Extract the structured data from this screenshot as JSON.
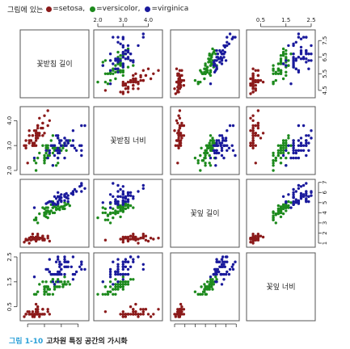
{
  "legend": {
    "prefix": "그림에 있는",
    "items": [
      {
        "label": "=setosa,",
        "color": "#8b1a1a"
      },
      {
        "label": "=versicolor,",
        "color": "#1d8a1d"
      },
      {
        "label": "=virginica",
        "color": "#1a1a9c"
      }
    ]
  },
  "caption": {
    "number": "그림 1-10",
    "text": "고차원 특징 공간의 가시화"
  },
  "chart_data": {
    "type": "scatter",
    "subtype": "scatterplot-matrix",
    "variables": [
      {
        "name": "꽃받침 길이",
        "range": [
          4.3,
          7.9
        ],
        "ticks": [
          4.5,
          5.5,
          6.5,
          7.5
        ],
        "tick_labels": [
          "4.5",
          "5.5",
          "6.5",
          "7.5"
        ]
      },
      {
        "name": "꽃받침 너비",
        "range": [
          2.0,
          4.4
        ],
        "ticks": [
          2.0,
          3.0,
          4.0
        ],
        "tick_labels": [
          "2.0",
          "3.0",
          "4.0"
        ]
      },
      {
        "name": "꽃잎 길이",
        "range": [
          1.0,
          6.9
        ],
        "ticks": [
          1,
          2,
          3,
          4,
          5,
          6,
          7
        ],
        "tick_labels": [
          "1",
          "2",
          "3",
          "4",
          "5",
          "6",
          "7"
        ]
      },
      {
        "name": "꽃잎 너비",
        "range": [
          0.1,
          2.5
        ],
        "ticks": [
          0.5,
          1.5,
          2.5
        ],
        "tick_labels": [
          "0.5",
          "1.5",
          "2.5"
        ]
      }
    ],
    "axes": {
      "top": [
        {
          "panel": 1,
          "variable": 1
        },
        {
          "panel": 3,
          "variable": 3
        }
      ],
      "right": [
        {
          "panel": 0,
          "variable": 0
        },
        {
          "panel": 2,
          "variable": 2
        }
      ],
      "left": [
        {
          "panel": 1,
          "variable": 1
        },
        {
          "panel": 3,
          "variable": 3
        }
      ],
      "bottom": [
        {
          "panel": 0,
          "variable": 0
        },
        {
          "panel": 2,
          "variable": 2
        }
      ]
    },
    "grid": false,
    "legend_position": "top-left",
    "series": [
      {
        "name": "setosa",
        "color": "#8b1a1a",
        "points": [
          [
            5.1,
            3.5,
            1.4,
            0.2
          ],
          [
            4.9,
            3.0,
            1.4,
            0.2
          ],
          [
            4.7,
            3.2,
            1.3,
            0.2
          ],
          [
            4.6,
            3.1,
            1.5,
            0.2
          ],
          [
            5.0,
            3.6,
            1.4,
            0.2
          ],
          [
            5.4,
            3.9,
            1.7,
            0.4
          ],
          [
            4.6,
            3.4,
            1.4,
            0.3
          ],
          [
            5.0,
            3.4,
            1.5,
            0.2
          ],
          [
            4.4,
            2.9,
            1.4,
            0.2
          ],
          [
            4.9,
            3.1,
            1.5,
            0.1
          ],
          [
            5.4,
            3.7,
            1.5,
            0.2
          ],
          [
            4.8,
            3.4,
            1.6,
            0.2
          ],
          [
            4.8,
            3.0,
            1.4,
            0.1
          ],
          [
            4.3,
            3.0,
            1.1,
            0.1
          ],
          [
            5.8,
            4.0,
            1.2,
            0.2
          ],
          [
            5.7,
            4.4,
            1.5,
            0.4
          ],
          [
            5.4,
            3.9,
            1.3,
            0.4
          ],
          [
            5.1,
            3.5,
            1.4,
            0.3
          ],
          [
            5.7,
            3.8,
            1.7,
            0.3
          ],
          [
            5.1,
            3.8,
            1.5,
            0.3
          ],
          [
            5.4,
            3.4,
            1.7,
            0.2
          ],
          [
            5.1,
            3.7,
            1.5,
            0.4
          ],
          [
            4.6,
            3.6,
            1.0,
            0.2
          ],
          [
            5.1,
            3.3,
            1.7,
            0.5
          ],
          [
            4.8,
            3.4,
            1.9,
            0.2
          ],
          [
            5.0,
            3.0,
            1.6,
            0.2
          ],
          [
            5.0,
            3.4,
            1.6,
            0.4
          ],
          [
            5.2,
            3.5,
            1.5,
            0.2
          ],
          [
            5.2,
            3.4,
            1.4,
            0.2
          ],
          [
            4.7,
            3.2,
            1.6,
            0.2
          ],
          [
            4.8,
            3.1,
            1.6,
            0.2
          ],
          [
            5.4,
            3.4,
            1.5,
            0.4
          ],
          [
            5.2,
            4.1,
            1.5,
            0.1
          ],
          [
            5.5,
            4.2,
            1.4,
            0.2
          ],
          [
            4.9,
            3.1,
            1.5,
            0.2
          ],
          [
            5.0,
            3.2,
            1.2,
            0.2
          ],
          [
            5.5,
            3.5,
            1.3,
            0.2
          ],
          [
            4.9,
            3.6,
            1.4,
            0.1
          ],
          [
            4.4,
            3.0,
            1.3,
            0.2
          ],
          [
            5.1,
            3.4,
            1.5,
            0.2
          ],
          [
            5.0,
            3.5,
            1.3,
            0.3
          ],
          [
            4.5,
            2.3,
            1.3,
            0.3
          ],
          [
            4.4,
            3.2,
            1.3,
            0.2
          ],
          [
            5.0,
            3.5,
            1.6,
            0.6
          ],
          [
            5.1,
            3.8,
            1.9,
            0.4
          ],
          [
            4.8,
            3.0,
            1.4,
            0.3
          ],
          [
            5.1,
            3.8,
            1.6,
            0.2
          ],
          [
            4.6,
            3.2,
            1.4,
            0.2
          ],
          [
            5.3,
            3.7,
            1.5,
            0.2
          ],
          [
            5.0,
            3.3,
            1.4,
            0.2
          ]
        ]
      },
      {
        "name": "versicolor",
        "color": "#1d8a1d",
        "points": [
          [
            7.0,
            3.2,
            4.7,
            1.4
          ],
          [
            6.4,
            3.2,
            4.5,
            1.5
          ],
          [
            6.9,
            3.1,
            4.9,
            1.5
          ],
          [
            5.5,
            2.3,
            4.0,
            1.3
          ],
          [
            6.5,
            2.8,
            4.6,
            1.5
          ],
          [
            5.7,
            2.8,
            4.5,
            1.3
          ],
          [
            6.3,
            3.3,
            4.7,
            1.6
          ],
          [
            4.9,
            2.4,
            3.3,
            1.0
          ],
          [
            6.6,
            2.9,
            4.6,
            1.3
          ],
          [
            5.2,
            2.7,
            3.9,
            1.4
          ],
          [
            5.0,
            2.0,
            3.5,
            1.0
          ],
          [
            5.9,
            3.0,
            4.2,
            1.5
          ],
          [
            6.0,
            2.2,
            4.0,
            1.0
          ],
          [
            6.1,
            2.9,
            4.7,
            1.4
          ],
          [
            5.6,
            2.9,
            3.6,
            1.3
          ],
          [
            6.7,
            3.1,
            4.4,
            1.4
          ],
          [
            5.6,
            3.0,
            4.5,
            1.5
          ],
          [
            5.8,
            2.7,
            4.1,
            1.0
          ],
          [
            6.2,
            2.2,
            4.5,
            1.5
          ],
          [
            5.6,
            2.5,
            3.9,
            1.1
          ],
          [
            5.9,
            3.2,
            4.8,
            1.8
          ],
          [
            6.1,
            2.8,
            4.0,
            1.3
          ],
          [
            6.3,
            2.5,
            4.9,
            1.5
          ],
          [
            6.1,
            2.8,
            4.7,
            1.2
          ],
          [
            6.4,
            2.9,
            4.3,
            1.3
          ],
          [
            6.6,
            3.0,
            4.4,
            1.4
          ],
          [
            6.8,
            2.8,
            4.8,
            1.4
          ],
          [
            6.7,
            3.0,
            5.0,
            1.7
          ],
          [
            6.0,
            2.9,
            4.5,
            1.5
          ],
          [
            5.7,
            2.6,
            3.5,
            1.0
          ],
          [
            5.5,
            2.4,
            3.8,
            1.1
          ],
          [
            5.5,
            2.4,
            3.7,
            1.0
          ],
          [
            5.8,
            2.7,
            3.9,
            1.2
          ],
          [
            6.0,
            2.7,
            5.1,
            1.6
          ],
          [
            5.4,
            3.0,
            4.5,
            1.5
          ],
          [
            6.0,
            3.4,
            4.5,
            1.6
          ],
          [
            6.7,
            3.1,
            4.7,
            1.5
          ],
          [
            6.3,
            2.3,
            4.4,
            1.3
          ],
          [
            5.6,
            3.0,
            4.1,
            1.3
          ],
          [
            5.5,
            2.5,
            4.0,
            1.3
          ],
          [
            5.5,
            2.6,
            4.4,
            1.2
          ],
          [
            6.1,
            3.0,
            4.6,
            1.4
          ],
          [
            5.8,
            2.6,
            4.0,
            1.2
          ],
          [
            5.0,
            2.3,
            3.3,
            1.0
          ],
          [
            5.6,
            2.7,
            4.2,
            1.3
          ],
          [
            5.7,
            3.0,
            4.2,
            1.2
          ],
          [
            5.7,
            2.9,
            4.2,
            1.3
          ],
          [
            6.2,
            2.9,
            4.3,
            1.3
          ],
          [
            5.1,
            2.5,
            3.0,
            1.1
          ],
          [
            5.7,
            2.8,
            4.1,
            1.3
          ]
        ]
      },
      {
        "name": "virginica",
        "color": "#1a1a9c",
        "points": [
          [
            6.3,
            3.3,
            6.0,
            2.5
          ],
          [
            5.8,
            2.7,
            5.1,
            1.9
          ],
          [
            7.1,
            3.0,
            5.9,
            2.1
          ],
          [
            6.3,
            2.9,
            5.6,
            1.8
          ],
          [
            6.5,
            3.0,
            5.8,
            2.2
          ],
          [
            7.6,
            3.0,
            6.6,
            2.1
          ],
          [
            4.9,
            2.5,
            4.5,
            1.7
          ],
          [
            7.3,
            2.9,
            6.3,
            1.8
          ],
          [
            6.7,
            2.5,
            5.8,
            1.8
          ],
          [
            7.2,
            3.6,
            6.1,
            2.5
          ],
          [
            6.5,
            3.2,
            5.1,
            2.0
          ],
          [
            6.4,
            2.7,
            5.3,
            1.9
          ],
          [
            6.8,
            3.0,
            5.5,
            2.1
          ],
          [
            5.7,
            2.5,
            5.0,
            2.0
          ],
          [
            5.8,
            2.8,
            5.1,
            2.4
          ],
          [
            6.4,
            3.2,
            5.3,
            2.3
          ],
          [
            6.5,
            3.0,
            5.5,
            1.8
          ],
          [
            7.7,
            3.8,
            6.7,
            2.2
          ],
          [
            7.7,
            2.6,
            6.9,
            2.3
          ],
          [
            6.0,
            2.2,
            5.0,
            1.5
          ],
          [
            6.9,
            3.2,
            5.7,
            2.3
          ],
          [
            5.6,
            2.8,
            4.9,
            2.0
          ],
          [
            7.7,
            2.8,
            6.7,
            2.0
          ],
          [
            6.3,
            2.7,
            4.9,
            1.8
          ],
          [
            6.7,
            3.3,
            5.7,
            2.1
          ],
          [
            7.2,
            3.2,
            6.0,
            1.8
          ],
          [
            6.2,
            2.8,
            4.8,
            1.8
          ],
          [
            6.1,
            3.0,
            4.9,
            1.8
          ],
          [
            6.4,
            2.8,
            5.6,
            2.1
          ],
          [
            7.2,
            3.0,
            5.8,
            1.6
          ],
          [
            7.4,
            2.8,
            6.1,
            1.9
          ],
          [
            7.9,
            3.8,
            6.4,
            2.0
          ],
          [
            6.4,
            2.8,
            5.6,
            2.2
          ],
          [
            6.3,
            2.8,
            5.1,
            1.5
          ],
          [
            6.1,
            2.6,
            5.6,
            1.4
          ],
          [
            7.7,
            3.0,
            6.1,
            2.3
          ],
          [
            6.3,
            3.4,
            5.6,
            2.4
          ],
          [
            6.4,
            3.1,
            5.5,
            1.8
          ],
          [
            6.0,
            3.0,
            4.8,
            1.8
          ],
          [
            6.9,
            3.1,
            5.4,
            2.1
          ],
          [
            6.7,
            3.1,
            5.6,
            2.4
          ],
          [
            6.9,
            3.1,
            5.1,
            2.3
          ],
          [
            5.8,
            2.7,
            5.1,
            1.9
          ],
          [
            6.8,
            3.2,
            5.9,
            2.3
          ],
          [
            6.7,
            3.3,
            5.7,
            2.5
          ],
          [
            6.7,
            3.0,
            5.2,
            2.3
          ],
          [
            6.3,
            2.5,
            5.0,
            1.9
          ],
          [
            6.5,
            3.0,
            5.2,
            2.0
          ],
          [
            6.2,
            3.4,
            5.4,
            2.3
          ],
          [
            5.9,
            3.0,
            5.1,
            1.8
          ]
        ]
      }
    ]
  }
}
